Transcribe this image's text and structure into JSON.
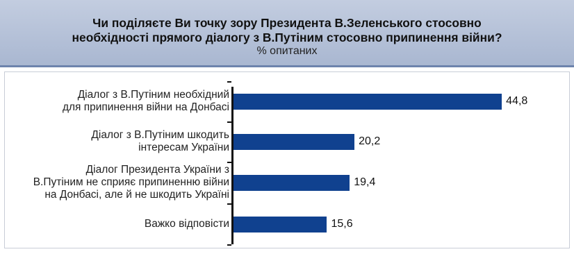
{
  "header": {
    "title": "Чи поділяєте Ви точку зору Президента В.Зеленського стосовно\nнеобхідності прямого діалогу з В.Путіним стосовно припинення війни?",
    "subtitle": "% опитаних"
  },
  "colors": {
    "bar": "#10418f",
    "header_bg": "#b4c1d9"
  },
  "chart_data": {
    "type": "bar",
    "orientation": "horizontal",
    "title": "Чи поділяєте Ви точку зору Президента В.Зеленського стосовно необхідності прямого діалогу з В.Путіним стосовно припинення війни?",
    "subtitle": "% опитаних",
    "categories": [
      "Діалог з В.Путіним необхідний\nдля припинення війни на Донбасі",
      "Діалог з В.Путіним шкодить\nінтересам України",
      "Діалог Президента України з\nВ.Путіним не сприяє припиненню війни\nна Донбасі, але й не шкодить Україні",
      "Важко відповісти"
    ],
    "values": [
      44.8,
      20.2,
      19.4,
      15.6
    ],
    "value_labels": [
      "44,8",
      "20,2",
      "19,4",
      "15,6"
    ],
    "xlim": [
      0,
      50
    ],
    "grid": false,
    "legend": "none"
  }
}
